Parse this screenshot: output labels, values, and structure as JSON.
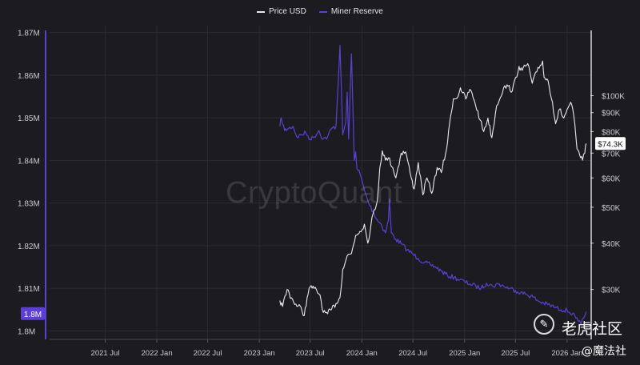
{
  "legend": [
    {
      "label": "Price USD",
      "color": "#e8e8ee"
    },
    {
      "label": "Miner Reserve",
      "color": "#5b3fd6"
    }
  ],
  "watermark": "CryptoQuant",
  "price_tag": "$74.3K",
  "reserve_tag": "1.8M",
  "social": {
    "name": "老虎社区",
    "sub": "@魔法社",
    "logo_glyph": "✎"
  },
  "colors": {
    "background": "#1c1c20",
    "price": "#e8e8ee",
    "reserve": "#5b3fd6",
    "grid": "#2b2b31",
    "axis_text": "#c8c8d0"
  },
  "chart_data": {
    "type": "line",
    "title": "",
    "x_tick_labels": [
      "2021 Jul",
      "2022 Jan",
      "2022 Jul",
      "2023 Jan",
      "2023 Jul",
      "2024 Jan",
      "2024 Jul",
      "2025 Jan",
      "2025 Jul",
      "2026 Jan"
    ],
    "x_ticks": [
      "2021-07-01",
      "2022-01-01",
      "2022-07-01",
      "2023-01-01",
      "2023-07-01",
      "2024-01-01",
      "2024-07-01",
      "2025-01-01",
      "2025-07-01",
      "2026-01-01"
    ],
    "xlim": [
      "2020-12-15",
      "2026-03-25"
    ],
    "y_left": {
      "label": "Miner Reserve",
      "ylim": [
        1.798,
        1.8705
      ],
      "ticks": [
        1.8,
        1.81,
        1.82,
        1.83,
        1.84,
        1.85,
        1.86,
        1.87
      ],
      "tick_labels": [
        "1.8M",
        "1.81M",
        "1.82M",
        "1.83M",
        "1.84M",
        "1.85M",
        "1.86M",
        "1.87M"
      ]
    },
    "y_right": {
      "label": "Price USD",
      "scale": "log",
      "ylim": [
        22000,
        150000
      ],
      "ticks": [
        30000,
        40000,
        50000,
        60000,
        70000,
        80000,
        90000,
        100000
      ],
      "tick_labels": [
        "$30K",
        "$40K",
        "$50K",
        "$60K",
        "$70K",
        "$80K",
        "$90K",
        "$100K"
      ]
    },
    "series": [
      {
        "name": "Price USD",
        "axis": "right",
        "x": [
          "2023-03-15",
          "2023-03-25",
          "2023-04-10",
          "2023-04-25",
          "2023-05-15",
          "2023-05-30",
          "2023-06-10",
          "2023-06-20",
          "2023-07-01",
          "2023-07-15",
          "2023-08-05",
          "2023-08-17",
          "2023-09-01",
          "2023-09-15",
          "2023-10-01",
          "2023-10-15",
          "2023-10-25",
          "2023-11-10",
          "2023-11-25",
          "2023-12-10",
          "2023-12-25",
          "2024-01-10",
          "2024-01-22",
          "2024-02-10",
          "2024-02-25",
          "2024-03-05",
          "2024-03-14",
          "2024-03-25",
          "2024-04-05",
          "2024-04-20",
          "2024-05-01",
          "2024-05-20",
          "2024-06-05",
          "2024-06-25",
          "2024-07-05",
          "2024-07-20",
          "2024-08-05",
          "2024-08-20",
          "2024-09-06",
          "2024-09-25",
          "2024-10-10",
          "2024-10-29",
          "2024-11-12",
          "2024-11-22",
          "2024-12-05",
          "2024-12-17",
          "2025-01-05",
          "2025-01-20",
          "2025-02-05",
          "2025-02-25",
          "2025-03-10",
          "2025-03-25",
          "2025-04-08",
          "2025-04-25",
          "2025-05-20",
          "2025-06-05",
          "2025-06-20",
          "2025-07-14",
          "2025-07-25",
          "2025-08-14",
          "2025-08-30",
          "2025-09-15",
          "2025-10-06",
          "2025-10-11",
          "2025-10-25",
          "2025-11-10",
          "2025-11-21",
          "2025-12-05",
          "2025-12-20",
          "2026-01-05",
          "2026-01-14",
          "2026-01-25",
          "2026-02-05",
          "2026-02-15",
          "2026-02-25",
          "2026-03-05",
          "2026-03-10"
        ],
        "values": [
          28000,
          27000,
          30000,
          28500,
          27000,
          26800,
          25500,
          28500,
          30500,
          30200,
          29000,
          26000,
          25800,
          26500,
          27500,
          28500,
          34000,
          37000,
          37500,
          42000,
          43000,
          45000,
          40000,
          48000,
          52000,
          64000,
          71000,
          67000,
          68000,
          64000,
          60000,
          70000,
          70500,
          60000,
          56000,
          66000,
          54000,
          60000,
          54500,
          64000,
          62000,
          72000,
          88000,
          98000,
          98500,
          105000,
          98000,
          104000,
          97000,
          86000,
          80000,
          87000,
          77000,
          94000,
          105000,
          106000,
          103000,
          120000,
          117000,
          122000,
          108000,
          116000,
          124000,
          112000,
          110000,
          96000,
          84000,
          92000,
          87000,
          93000,
          96000,
          88000,
          72000,
          69000,
          67000,
          70000,
          74300
        ]
      },
      {
        "name": "Miner Reserve",
        "axis": "left",
        "x": [
          "2023-03-15",
          "2023-03-20",
          "2023-04-01",
          "2023-04-15",
          "2023-05-01",
          "2023-05-15",
          "2023-06-01",
          "2023-06-15",
          "2023-07-01",
          "2023-07-15",
          "2023-08-01",
          "2023-08-15",
          "2023-09-01",
          "2023-09-15",
          "2023-10-01",
          "2023-10-15",
          "2023-10-25",
          "2023-11-05",
          "2023-11-10",
          "2023-11-15",
          "2023-11-25",
          "2023-12-05",
          "2023-12-10",
          "2023-12-15",
          "2023-12-25",
          "2024-01-10",
          "2024-01-25",
          "2024-02-10",
          "2024-02-25",
          "2024-03-10",
          "2024-03-25",
          "2024-04-05",
          "2024-04-08",
          "2024-04-15",
          "2024-05-01",
          "2024-05-20",
          "2024-06-10",
          "2024-07-01",
          "2024-07-20",
          "2024-08-10",
          "2024-09-01",
          "2024-09-20",
          "2024-10-10",
          "2024-11-01",
          "2024-11-25",
          "2024-12-15",
          "2025-01-01",
          "2025-01-20",
          "2025-02-10",
          "2025-03-01",
          "2025-03-20",
          "2025-04-10",
          "2025-05-01",
          "2025-05-20",
          "2025-06-10",
          "2025-07-01",
          "2025-07-20",
          "2025-08-10",
          "2025-09-01",
          "2025-09-20",
          "2025-10-10",
          "2025-11-01",
          "2025-11-20",
          "2025-12-10",
          "2026-01-01",
          "2026-01-20",
          "2026-02-01",
          "2026-02-10",
          "2026-02-20",
          "2026-03-01",
          "2026-03-10"
        ],
        "values": [
          1.848,
          1.85,
          1.847,
          1.8475,
          1.848,
          1.8455,
          1.846,
          1.8465,
          1.845,
          1.8455,
          1.847,
          1.845,
          1.8455,
          1.8475,
          1.848,
          1.867,
          1.846,
          1.849,
          1.856,
          1.845,
          1.865,
          1.84,
          1.842,
          1.838,
          1.837,
          1.833,
          1.83,
          1.828,
          1.826,
          1.825,
          1.823,
          1.826,
          1.831,
          1.823,
          1.8215,
          1.8205,
          1.819,
          1.818,
          1.817,
          1.816,
          1.8155,
          1.815,
          1.814,
          1.813,
          1.8125,
          1.812,
          1.8115,
          1.811,
          1.8105,
          1.81,
          1.8112,
          1.8105,
          1.811,
          1.8105,
          1.81,
          1.8095,
          1.809,
          1.8085,
          1.808,
          1.807,
          1.8065,
          1.806,
          1.8055,
          1.805,
          1.8048,
          1.804,
          1.803,
          1.8022,
          1.8015,
          1.803,
          1.8045
        ]
      }
    ]
  }
}
